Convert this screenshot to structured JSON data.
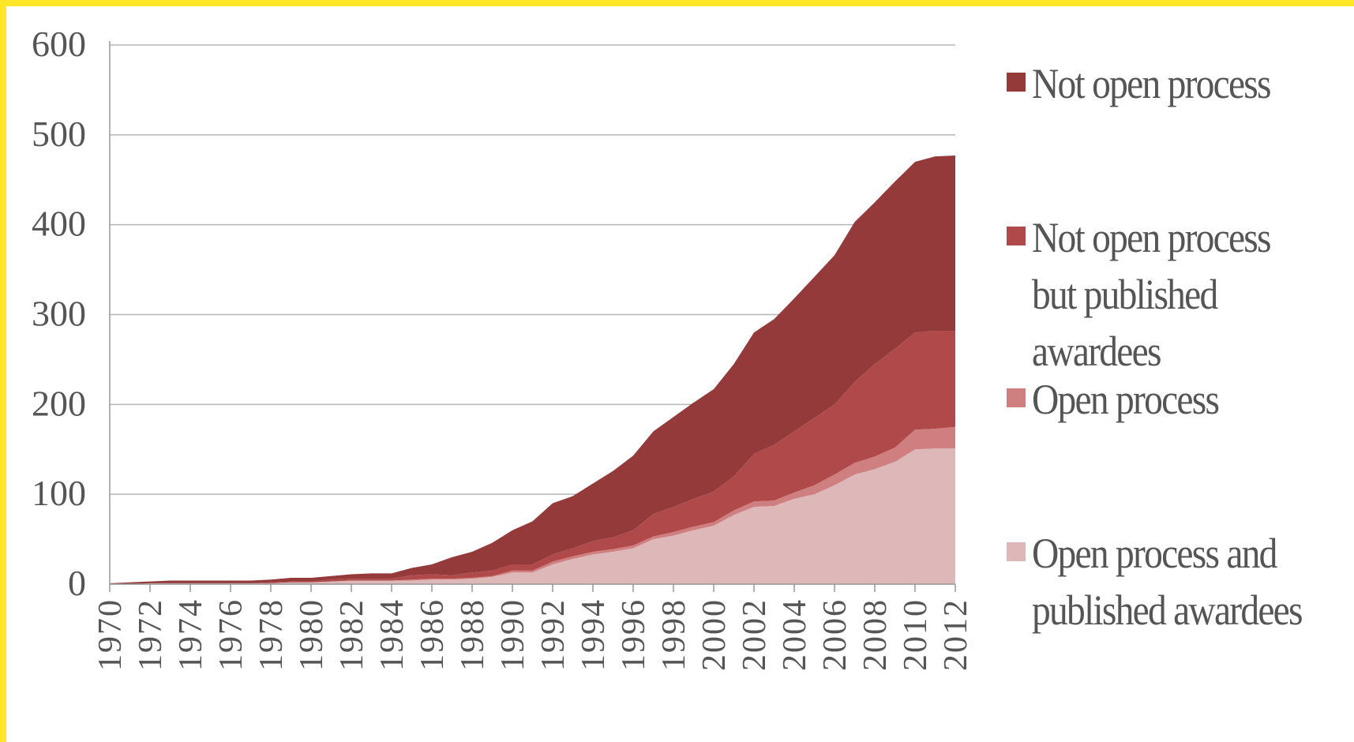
{
  "chart_data": {
    "type": "stacked-area",
    "x": [
      1970,
      1971,
      1972,
      1973,
      1974,
      1975,
      1976,
      1977,
      1978,
      1979,
      1980,
      1981,
      1982,
      1983,
      1984,
      1985,
      1986,
      1987,
      1988,
      1989,
      1990,
      1991,
      1992,
      1993,
      1994,
      1995,
      1996,
      1997,
      1998,
      1999,
      2000,
      2001,
      2002,
      2003,
      2004,
      2005,
      2006,
      2007,
      2008,
      2009,
      2010,
      2011,
      2012
    ],
    "xlim": [
      1970,
      2012
    ],
    "xticks": [
      1970,
      1972,
      1974,
      1976,
      1978,
      1980,
      1982,
      1984,
      1986,
      1988,
      1990,
      1992,
      1994,
      1996,
      1998,
      2000,
      2002,
      2004,
      2006,
      2008,
      2010,
      2012
    ],
    "ylim": [
      0,
      600
    ],
    "yticks": [
      0,
      100,
      200,
      300,
      400,
      500,
      600
    ],
    "grid": true,
    "legend": "right",
    "series": [
      {
        "name": "Open process and published awardees",
        "color": "#deb8b8",
        "values": [
          0,
          0,
          1,
          1,
          1,
          1,
          1,
          1,
          1,
          2,
          2,
          3,
          4,
          4,
          4,
          4,
          5,
          5,
          6,
          8,
          13,
          13,
          22,
          28,
          33,
          36,
          40,
          50,
          54,
          60,
          65,
          77,
          86,
          87,
          95,
          100,
          110,
          122,
          128,
          136,
          150,
          151,
          151
        ]
      },
      {
        "name": "Open process",
        "color": "#cf7f80",
        "values": [
          0,
          0,
          0,
          0,
          0,
          0,
          0,
          0,
          0,
          0,
          0,
          0,
          0,
          0,
          0,
          1,
          1,
          1,
          1,
          1,
          2,
          2,
          3,
          3,
          3,
          3,
          3,
          3,
          4,
          4,
          4,
          5,
          6,
          6,
          7,
          10,
          12,
          13,
          14,
          16,
          22,
          22,
          24
        ]
      },
      {
        "name": "Not open process but published awardees",
        "color": "#b04a4a",
        "values": [
          0,
          0,
          0,
          0,
          0,
          0,
          0,
          0,
          1,
          1,
          1,
          2,
          2,
          2,
          2,
          5,
          5,
          4,
          6,
          6,
          7,
          7,
          8,
          9,
          12,
          13,
          17,
          25,
          28,
          31,
          34,
          38,
          53,
          62,
          68,
          75,
          78,
          90,
          103,
          110,
          108,
          109,
          107
        ]
      },
      {
        "name": "Not open process",
        "color": "#943a3a",
        "values": [
          1,
          2,
          2,
          3,
          3,
          3,
          3,
          3,
          3,
          4,
          4,
          4,
          5,
          6,
          6,
          8,
          11,
          20,
          23,
          31,
          38,
          48,
          57,
          58,
          64,
          74,
          83,
          92,
          100,
          107,
          114,
          125,
          135,
          140,
          148,
          157,
          166,
          178,
          180,
          186,
          190,
          194,
          195
        ]
      }
    ]
  }
}
